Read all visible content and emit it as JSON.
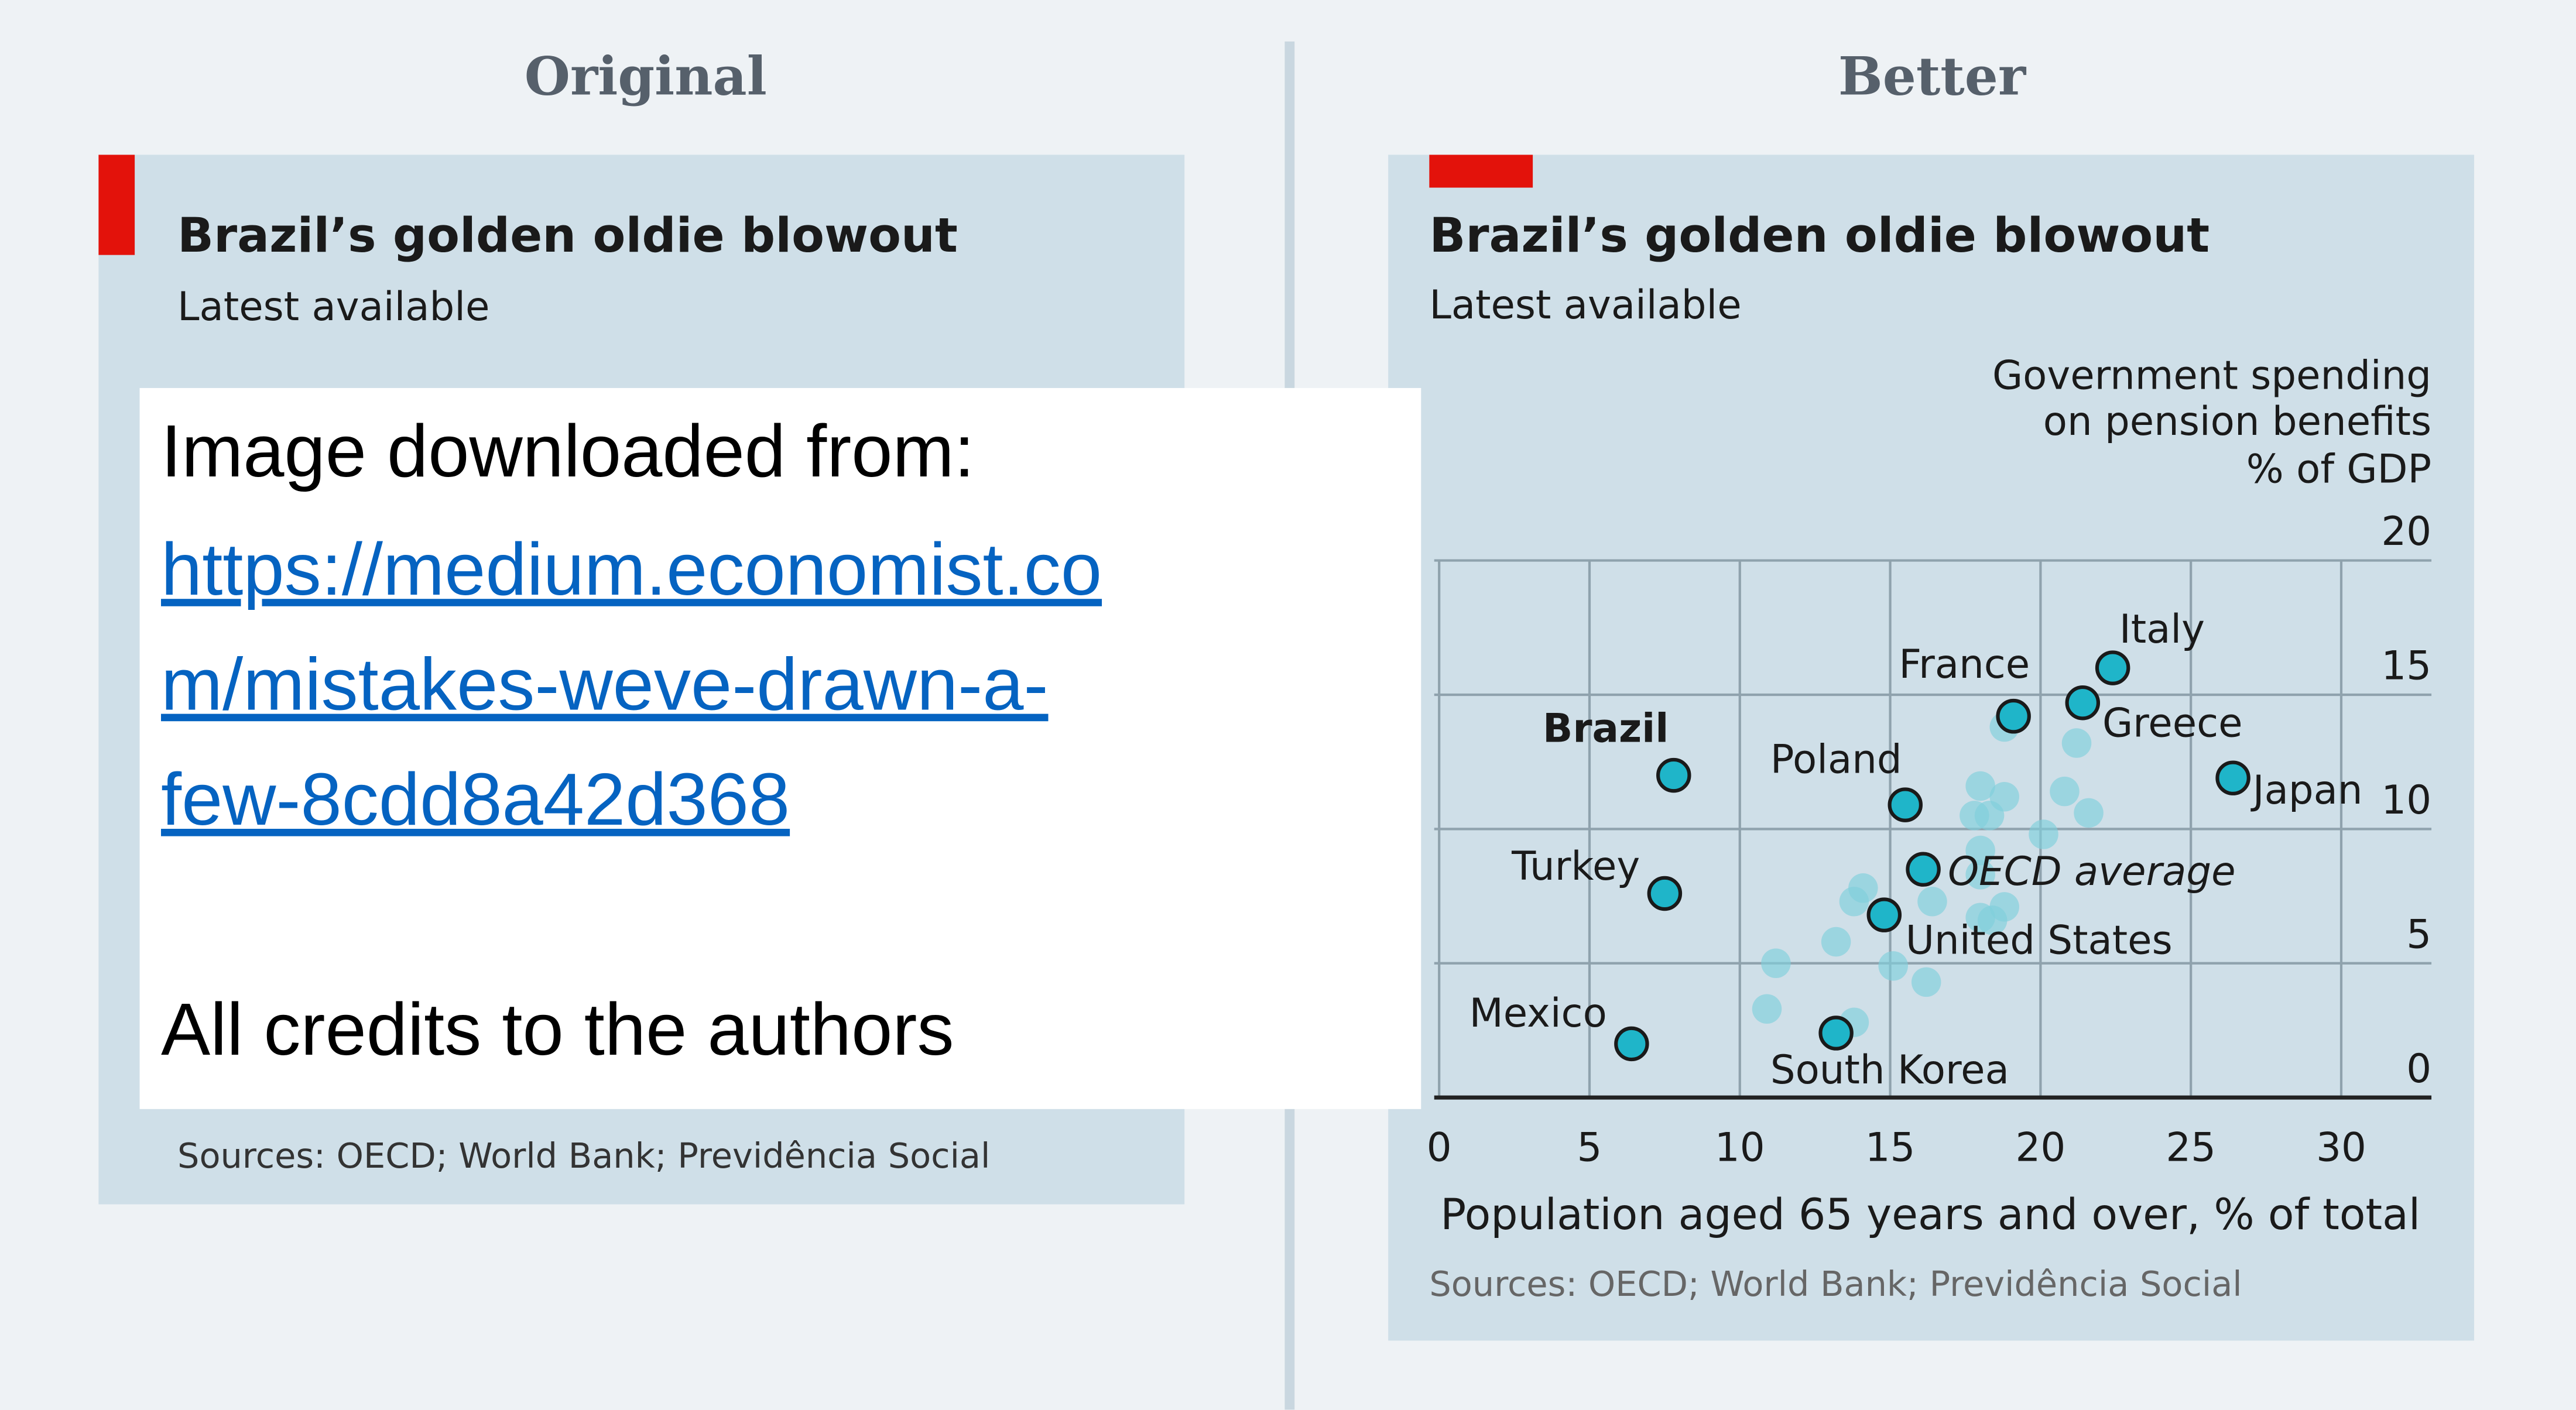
{
  "left_heading": "Original",
  "right_heading": "Better",
  "original_panel": {
    "title": "Brazil’s golden oldie blowout",
    "subtitle": "Latest available",
    "sources": "Sources: OECD; World Bank; Previdência Social"
  },
  "overlay": {
    "lines": [
      "Image downloaded from:"
    ],
    "link_lines": [
      "https://medium.economist.co",
      "m/mistakes-weve-drawn-a-",
      "few-8cdd8a42d368"
    ],
    "credits": "All credits to the authors"
  },
  "chart_data": {
    "type": "scatter",
    "title": "Brazil’s golden oldie blowout",
    "subtitle": "Latest available",
    "y_label": [
      "Government spending",
      "on pension benefits",
      "% of GDP"
    ],
    "x_label": "Population aged 65 years and over, % of total",
    "sources": "Sources: OECD; World Bank; Previdência Social",
    "xlim": [
      0,
      33
    ],
    "ylim": [
      0,
      20
    ],
    "xticks": [
      0,
      5,
      10,
      15,
      20,
      25,
      30
    ],
    "yticks": [
      0,
      5,
      10,
      15,
      20
    ],
    "grid": true,
    "highlight_color": "#1fb5c9",
    "other_color": "#7fd0dc",
    "points": [
      {
        "label": "Brazil",
        "x": 7.8,
        "y": 12.0
      },
      {
        "label": "Turkey",
        "x": 7.5,
        "y": 7.6
      },
      {
        "label": "Mexico",
        "x": 6.4,
        "y": 2.0
      },
      {
        "label": "South Korea",
        "x": 13.2,
        "y": 2.4
      },
      {
        "label": "United States",
        "x": 14.8,
        "y": 6.8
      },
      {
        "label": "OECD average",
        "x": 16.1,
        "y": 8.5
      },
      {
        "label": "Poland",
        "x": 15.5,
        "y": 10.9
      },
      {
        "label": "France",
        "x": 19.1,
        "y": 14.2
      },
      {
        "label": "Greece",
        "x": 21.4,
        "y": 14.7
      },
      {
        "label": "Italy",
        "x": 22.4,
        "y": 16.0
      },
      {
        "label": "Japan",
        "x": 26.4,
        "y": 11.9
      }
    ],
    "others": {
      "x": [
        11.2,
        10.9,
        13.2,
        13.8,
        14.1,
        15.1,
        16.2,
        13.8,
        16.4,
        18.0,
        18.8,
        18.0,
        18.0,
        17.8,
        18.3,
        18.8,
        18.0,
        18.8,
        20.1,
        20.8,
        21.6,
        21.2,
        18.4
      ],
      "y": [
        5.0,
        3.3,
        5.8,
        7.3,
        7.8,
        4.9,
        4.3,
        2.8,
        7.3,
        6.7,
        7.1,
        8.3,
        9.2,
        10.5,
        10.5,
        11.2,
        11.6,
        13.8,
        9.8,
        11.4,
        10.6,
        13.2,
        6.6
      ]
    }
  }
}
